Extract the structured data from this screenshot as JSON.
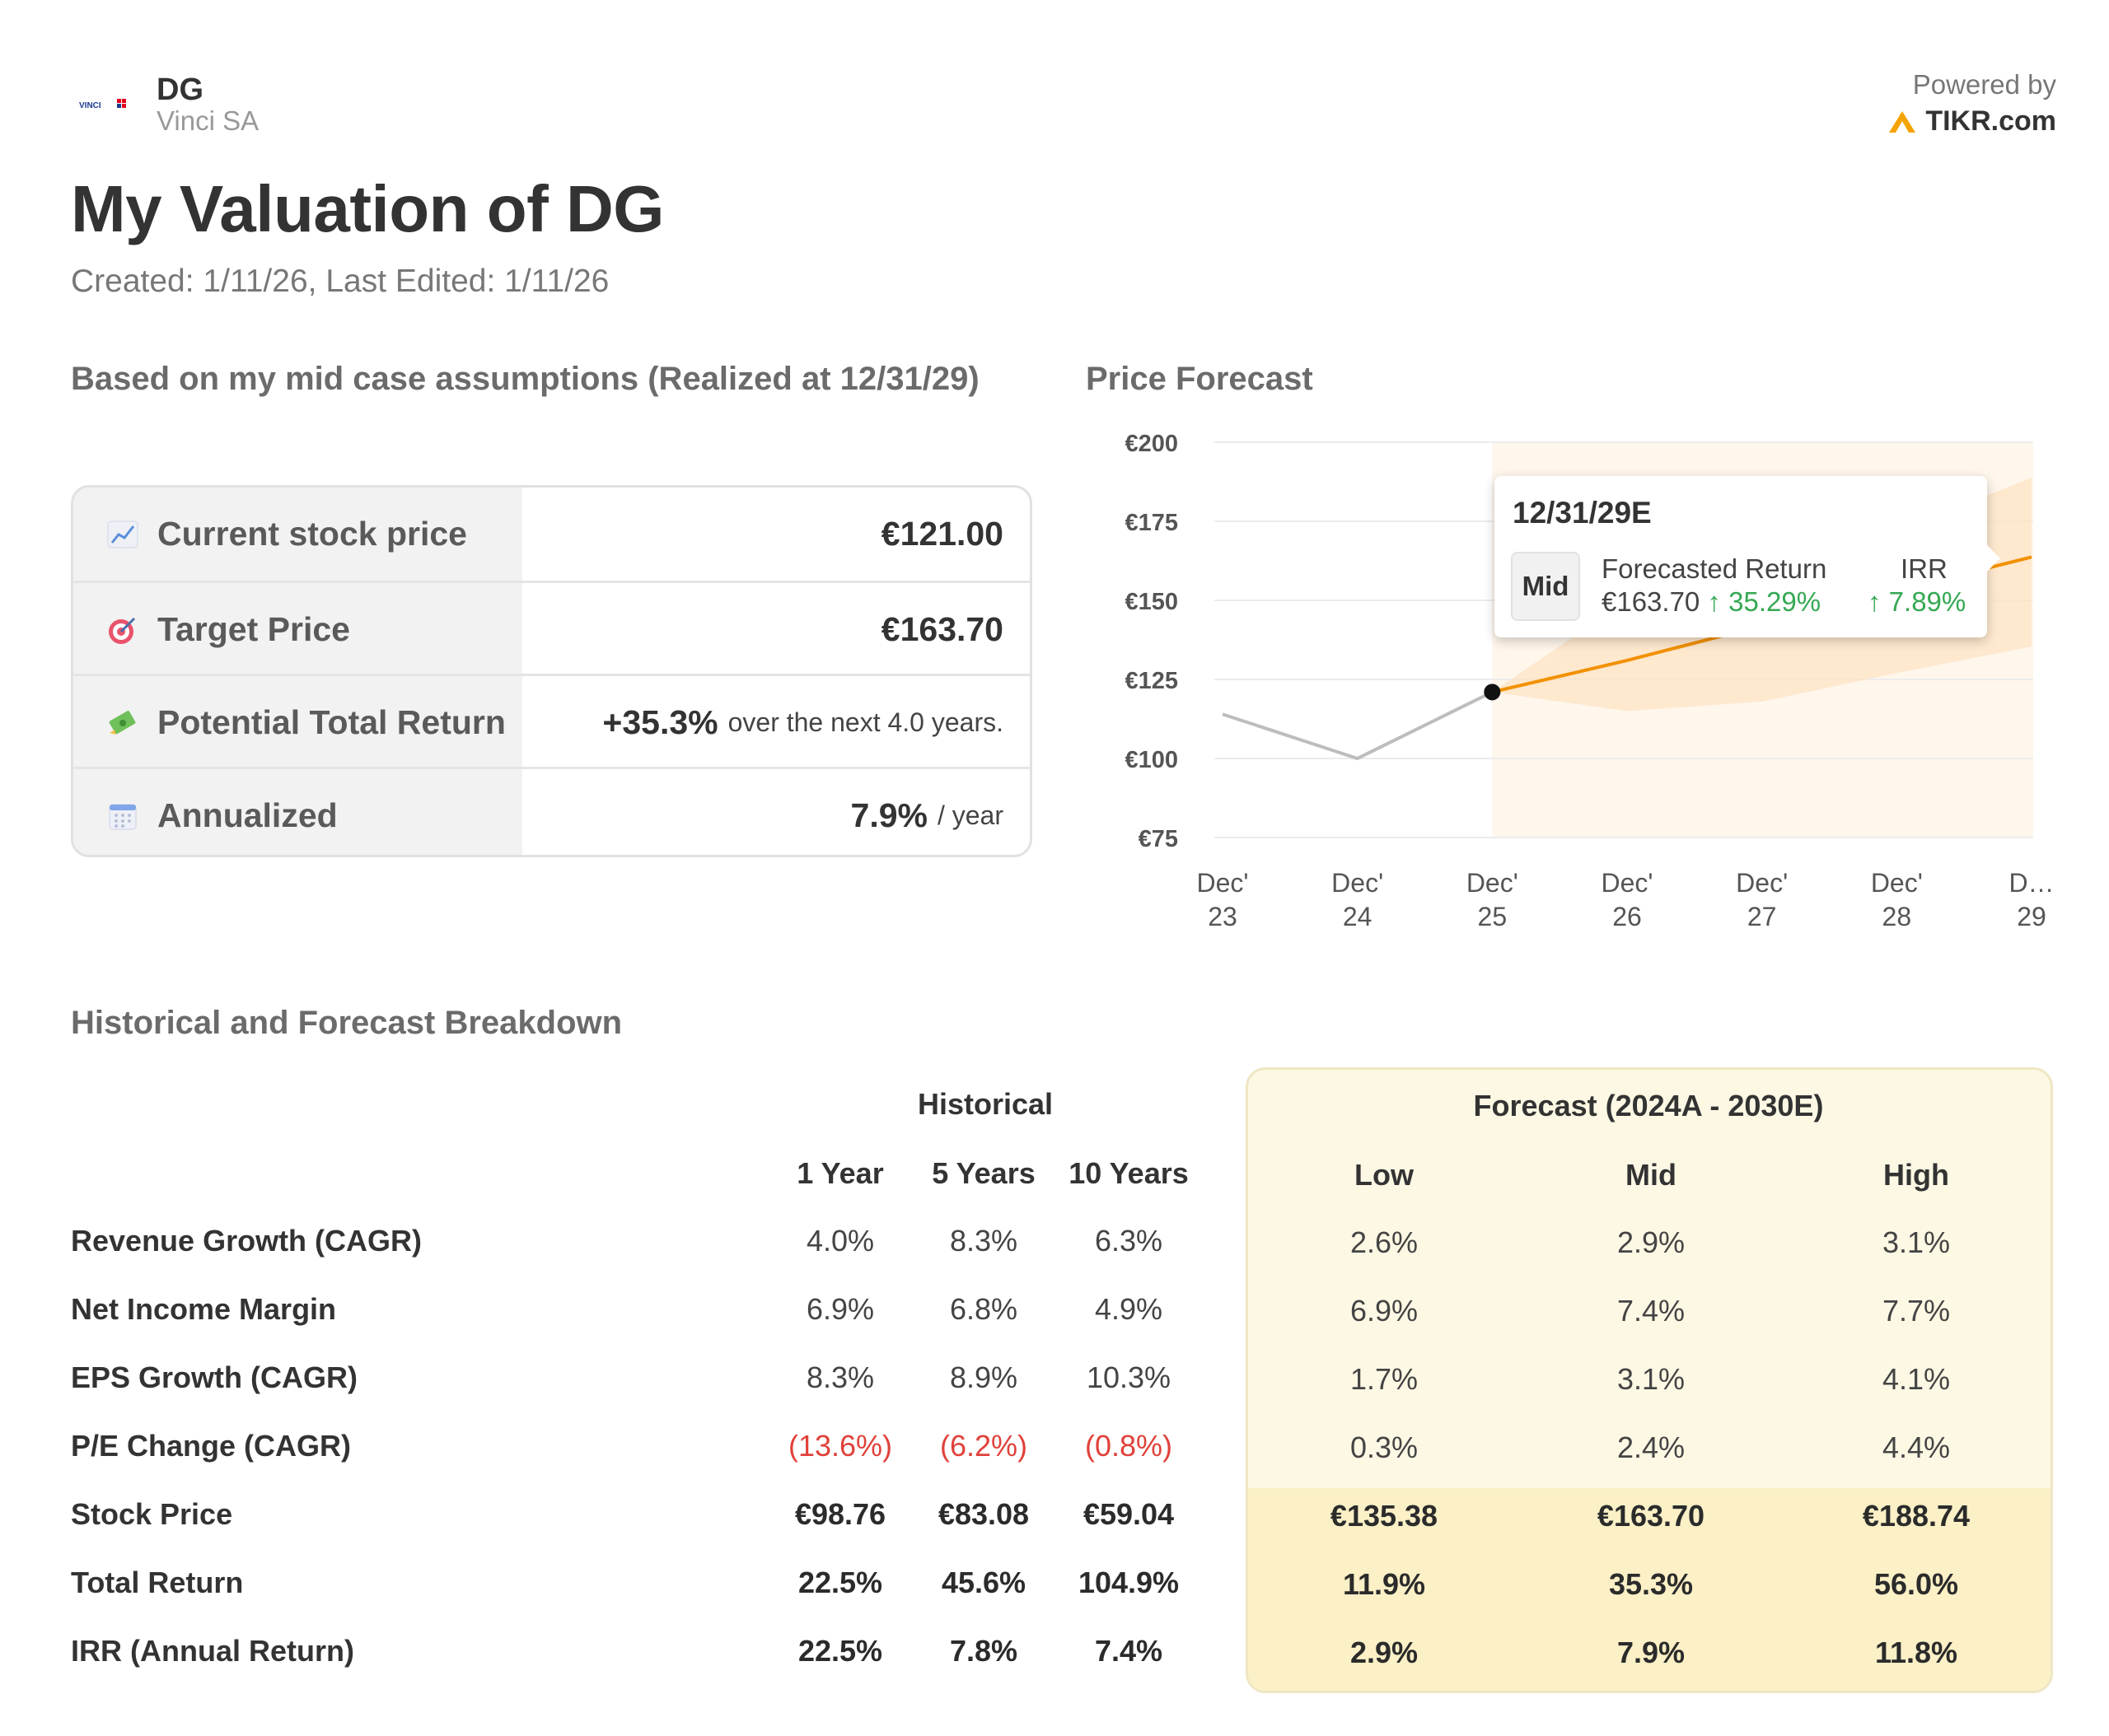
{
  "header": {
    "logo_text": "VINCI",
    "ticker": "DG",
    "company": "Vinci SA",
    "powered_by": "Powered by",
    "brand": "TIKR.com",
    "title": "My Valuation of DG",
    "dates": "Created: 1/11/26, Last Edited: 1/11/26"
  },
  "sections": {
    "assumptions": "Based on my mid case assumptions (Realized at 12/31/29)",
    "price_forecast": "Price Forecast",
    "breakdown": "Historical and Forecast Breakdown"
  },
  "summary": [
    {
      "icon": "chart-increasing-icon",
      "label": "Current stock price",
      "value": "€121.00",
      "suffix": ""
    },
    {
      "icon": "target-icon",
      "label": "Target Price",
      "value": "€163.70",
      "suffix": ""
    },
    {
      "icon": "money-icon",
      "label": "Potential Total Return",
      "value": "+35.3%",
      "suffix": "over the next 4.0 years."
    },
    {
      "icon": "calendar-icon",
      "label": "Annualized",
      "value": "7.9%",
      "suffix": "/ year"
    }
  ],
  "chart_data": {
    "type": "line",
    "title": "Price Forecast",
    "x": [
      "Dec' 23",
      "Dec' 24",
      "Dec' 25",
      "Dec' 26",
      "Dec' 27",
      "Dec' 28",
      "D… 29"
    ],
    "ylim": [
      75,
      200
    ],
    "y_ticks": [
      "€200",
      "€175",
      "€150",
      "€125",
      "€100",
      "€75"
    ],
    "series": [
      {
        "role": "historical",
        "color": "#bdbdbd",
        "values": [
          114,
          100,
          121,
          null,
          null,
          null,
          null
        ]
      },
      {
        "role": "forecast_mid",
        "color": "#f29100",
        "values": [
          null,
          null,
          121,
          131,
          142,
          153,
          163.7
        ]
      },
      {
        "role": "forecast_band",
        "color": "#fde3c4",
        "upper": [
          null,
          null,
          121,
          150,
          162,
          172,
          188.7
        ],
        "lower": [
          null,
          null,
          121,
          115,
          118,
          127,
          135.4
        ]
      }
    ],
    "current_point": {
      "x": "Dec' 25",
      "y": 121
    },
    "tooltip": {
      "date": "12/31/29E",
      "case": "Mid",
      "return_label": "Forecasted Return",
      "price": "€163.70",
      "return_pct": "↑ 35.29%",
      "irr_label": "IRR",
      "irr_pct": "↑ 7.89%"
    },
    "grid": true
  },
  "breakdown": {
    "historical_title": "Historical",
    "forecast_title": "Forecast (2024A - 2030E)",
    "hist_cols": [
      "1 Year",
      "5 Years",
      "10 Years"
    ],
    "fc_cols": [
      "Low",
      "Mid",
      "High"
    ],
    "rows": [
      {
        "label": "Revenue Growth (CAGR)",
        "hist": [
          "4.0%",
          "8.3%",
          "6.3%"
        ],
        "fc": [
          "2.6%",
          "2.9%",
          "3.1%"
        ],
        "bold": false,
        "neg": false
      },
      {
        "label": "Net Income Margin",
        "hist": [
          "6.9%",
          "6.8%",
          "4.9%"
        ],
        "fc": [
          "6.9%",
          "7.4%",
          "7.7%"
        ],
        "bold": false,
        "neg": false
      },
      {
        "label": "EPS Growth (CAGR)",
        "hist": [
          "8.3%",
          "8.9%",
          "10.3%"
        ],
        "fc": [
          "1.7%",
          "3.1%",
          "4.1%"
        ],
        "bold": false,
        "neg": false
      },
      {
        "label": "P/E Change (CAGR)",
        "hist": [
          "(13.6%)",
          "(6.2%)",
          "(0.8%)"
        ],
        "fc": [
          "0.3%",
          "2.4%",
          "4.4%"
        ],
        "bold": false,
        "neg": true
      },
      {
        "label": "Stock Price",
        "hist": [
          "€98.76",
          "€83.08",
          "€59.04"
        ],
        "fc": [
          "€135.38",
          "€163.70",
          "€188.74"
        ],
        "bold": true,
        "neg": false
      },
      {
        "label": "Total Return",
        "hist": [
          "22.5%",
          "45.6%",
          "104.9%"
        ],
        "fc": [
          "11.9%",
          "35.3%",
          "56.0%"
        ],
        "bold": true,
        "neg": false
      },
      {
        "label": "IRR (Annual Return)",
        "hist": [
          "22.5%",
          "7.8%",
          "7.4%"
        ],
        "fc": [
          "2.9%",
          "7.9%",
          "11.8%"
        ],
        "bold": true,
        "neg": false
      }
    ]
  }
}
